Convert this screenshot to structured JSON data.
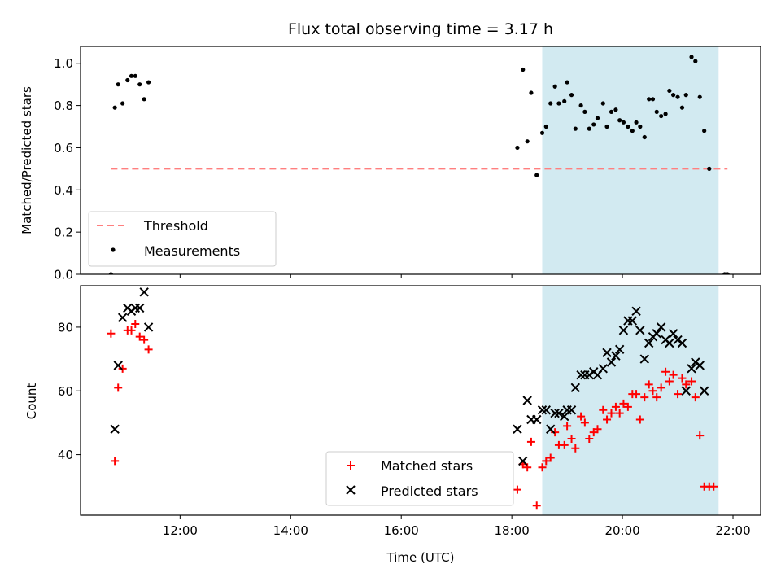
{
  "chart_data": [
    {
      "type": "scatter",
      "title": "Flux total observing time = 3.17 h",
      "xlabel": "",
      "ylabel": "Matched/Predicted stars",
      "xlim": [
        10.2,
        22.5
      ],
      "ylim": [
        0.0,
        1.08
      ],
      "yticks": [
        0.0,
        0.2,
        0.4,
        0.6,
        0.8,
        1.0
      ],
      "ytick_labels": [
        "0.0",
        "0.2",
        "0.4",
        "0.6",
        "0.8",
        "1.0"
      ],
      "grid": false,
      "legend": {
        "position": "lower-left",
        "entries": [
          "Threshold",
          "Measurements"
        ]
      },
      "shaded_region": {
        "x": [
          18.56,
          21.73
        ],
        "color": "#add8e6"
      },
      "threshold": {
        "name": "Threshold",
        "x": [
          10.75,
          21.9
        ],
        "y": 0.5,
        "color": "#ff7f7f",
        "style": "dashed"
      },
      "series": [
        {
          "name": "Measurements",
          "color": "#000000",
          "marker": "dot",
          "points": [
            [
              10.75,
              0.0
            ],
            [
              10.82,
              0.79
            ],
            [
              10.88,
              0.9
            ],
            [
              10.96,
              0.81
            ],
            [
              11.05,
              0.92
            ],
            [
              11.12,
              0.94
            ],
            [
              11.19,
              0.94
            ],
            [
              11.27,
              0.9
            ],
            [
              11.35,
              0.83
            ],
            [
              11.43,
              0.91
            ],
            [
              18.1,
              0.6
            ],
            [
              18.2,
              0.97
            ],
            [
              18.28,
              0.63
            ],
            [
              18.35,
              0.86
            ],
            [
              18.45,
              0.47
            ],
            [
              18.55,
              0.67
            ],
            [
              18.62,
              0.7
            ],
            [
              18.7,
              0.81
            ],
            [
              18.78,
              0.89
            ],
            [
              18.85,
              0.81
            ],
            [
              18.95,
              0.82
            ],
            [
              19.0,
              0.91
            ],
            [
              19.08,
              0.85
            ],
            [
              19.15,
              0.69
            ],
            [
              19.25,
              0.8
            ],
            [
              19.32,
              0.77
            ],
            [
              19.4,
              0.69
            ],
            [
              19.48,
              0.71
            ],
            [
              19.55,
              0.74
            ],
            [
              19.65,
              0.81
            ],
            [
              19.72,
              0.7
            ],
            [
              19.8,
              0.77
            ],
            [
              19.88,
              0.78
            ],
            [
              19.95,
              0.73
            ],
            [
              20.02,
              0.72
            ],
            [
              20.1,
              0.7
            ],
            [
              20.18,
              0.68
            ],
            [
              20.25,
              0.72
            ],
            [
              20.32,
              0.7
            ],
            [
              20.4,
              0.65
            ],
            [
              20.48,
              0.83
            ],
            [
              20.55,
              0.83
            ],
            [
              20.62,
              0.77
            ],
            [
              20.7,
              0.75
            ],
            [
              20.78,
              0.76
            ],
            [
              20.85,
              0.87
            ],
            [
              20.92,
              0.85
            ],
            [
              21.0,
              0.84
            ],
            [
              21.08,
              0.79
            ],
            [
              21.15,
              0.85
            ],
            [
              21.25,
              1.03
            ],
            [
              21.32,
              1.01
            ],
            [
              21.4,
              0.84
            ],
            [
              21.48,
              0.68
            ],
            [
              21.57,
              0.5
            ],
            [
              21.85,
              0.0
            ],
            [
              21.9,
              0.0
            ]
          ]
        }
      ]
    },
    {
      "type": "scatter",
      "title": "",
      "xlabel": "Time (UTC)",
      "ylabel": "Count",
      "xlim": [
        10.2,
        22.5
      ],
      "ylim": [
        21,
        93
      ],
      "xticks": [
        12,
        14,
        16,
        18,
        20,
        22
      ],
      "xtick_labels": [
        "12:00",
        "14:00",
        "16:00",
        "18:00",
        "20:00",
        "22:00"
      ],
      "yticks": [
        40,
        60,
        80
      ],
      "ytick_labels": [
        "40",
        "60",
        "80"
      ],
      "grid": false,
      "legend": {
        "position": "lower-center",
        "entries": [
          "Matched stars",
          "Predicted stars"
        ]
      },
      "shaded_region": {
        "x": [
          18.56,
          21.73
        ],
        "color": "#add8e6"
      },
      "series": [
        {
          "name": "Matched stars",
          "color": "#ff0000",
          "marker": "plus",
          "points": [
            [
              10.75,
              78
            ],
            [
              10.82,
              38
            ],
            [
              10.88,
              61
            ],
            [
              10.96,
              67
            ],
            [
              11.05,
              79
            ],
            [
              11.12,
              79
            ],
            [
              11.19,
              81
            ],
            [
              11.27,
              77
            ],
            [
              11.35,
              76
            ],
            [
              11.43,
              73
            ],
            [
              18.1,
              29
            ],
            [
              18.2,
              37
            ],
            [
              18.28,
              36
            ],
            [
              18.35,
              44
            ],
            [
              18.45,
              24
            ],
            [
              18.55,
              36
            ],
            [
              18.62,
              38
            ],
            [
              18.7,
              39
            ],
            [
              18.78,
              47
            ],
            [
              18.85,
              43
            ],
            [
              18.95,
              43
            ],
            [
              19.0,
              49
            ],
            [
              19.08,
              45
            ],
            [
              19.15,
              42
            ],
            [
              19.25,
              52
            ],
            [
              19.32,
              50
            ],
            [
              19.4,
              45
            ],
            [
              19.48,
              47
            ],
            [
              19.55,
              48
            ],
            [
              19.65,
              54
            ],
            [
              19.72,
              51
            ],
            [
              19.8,
              53
            ],
            [
              19.88,
              55
            ],
            [
              19.95,
              53
            ],
            [
              20.02,
              56
            ],
            [
              20.1,
              55
            ],
            [
              20.18,
              59
            ],
            [
              20.25,
              59
            ],
            [
              20.32,
              51
            ],
            [
              20.4,
              58
            ],
            [
              20.48,
              62
            ],
            [
              20.55,
              60
            ],
            [
              20.62,
              58
            ],
            [
              20.7,
              61
            ],
            [
              20.78,
              66
            ],
            [
              20.85,
              63
            ],
            [
              20.92,
              65
            ],
            [
              21.0,
              59
            ],
            [
              21.08,
              64
            ],
            [
              21.15,
              62
            ],
            [
              21.25,
              63
            ],
            [
              21.32,
              58
            ],
            [
              21.4,
              46
            ],
            [
              21.48,
              30
            ],
            [
              21.57,
              30
            ],
            [
              21.65,
              30
            ]
          ]
        },
        {
          "name": "Predicted stars",
          "color": "#000000",
          "marker": "x",
          "points": [
            [
              10.82,
              48
            ],
            [
              10.88,
              68
            ],
            [
              10.96,
              83
            ],
            [
              11.05,
              86
            ],
            [
              11.12,
              85
            ],
            [
              11.19,
              86
            ],
            [
              11.27,
              86
            ],
            [
              11.35,
              91
            ],
            [
              11.43,
              80
            ],
            [
              18.1,
              48
            ],
            [
              18.2,
              38
            ],
            [
              18.28,
              57
            ],
            [
              18.35,
              51
            ],
            [
              18.45,
              51
            ],
            [
              18.55,
              54
            ],
            [
              18.62,
              54
            ],
            [
              18.7,
              48
            ],
            [
              18.78,
              53
            ],
            [
              18.85,
              53
            ],
            [
              18.95,
              52
            ],
            [
              19.0,
              54
            ],
            [
              19.08,
              54
            ],
            [
              19.15,
              61
            ],
            [
              19.25,
              65
            ],
            [
              19.32,
              65
            ],
            [
              19.4,
              65
            ],
            [
              19.48,
              66
            ],
            [
              19.55,
              65
            ],
            [
              19.65,
              67
            ],
            [
              19.72,
              72
            ],
            [
              19.8,
              69
            ],
            [
              19.88,
              71
            ],
            [
              19.95,
              73
            ],
            [
              20.02,
              79
            ],
            [
              20.1,
              82
            ],
            [
              20.18,
              82
            ],
            [
              20.25,
              85
            ],
            [
              20.32,
              79
            ],
            [
              20.4,
              70
            ],
            [
              20.48,
              75
            ],
            [
              20.55,
              77
            ],
            [
              20.62,
              78
            ],
            [
              20.7,
              80
            ],
            [
              20.78,
              76
            ],
            [
              20.85,
              75
            ],
            [
              20.92,
              78
            ],
            [
              21.0,
              76
            ],
            [
              21.08,
              75
            ],
            [
              21.15,
              60
            ],
            [
              21.25,
              67
            ],
            [
              21.32,
              69
            ],
            [
              21.4,
              68
            ],
            [
              21.48,
              60
            ]
          ]
        }
      ]
    }
  ]
}
